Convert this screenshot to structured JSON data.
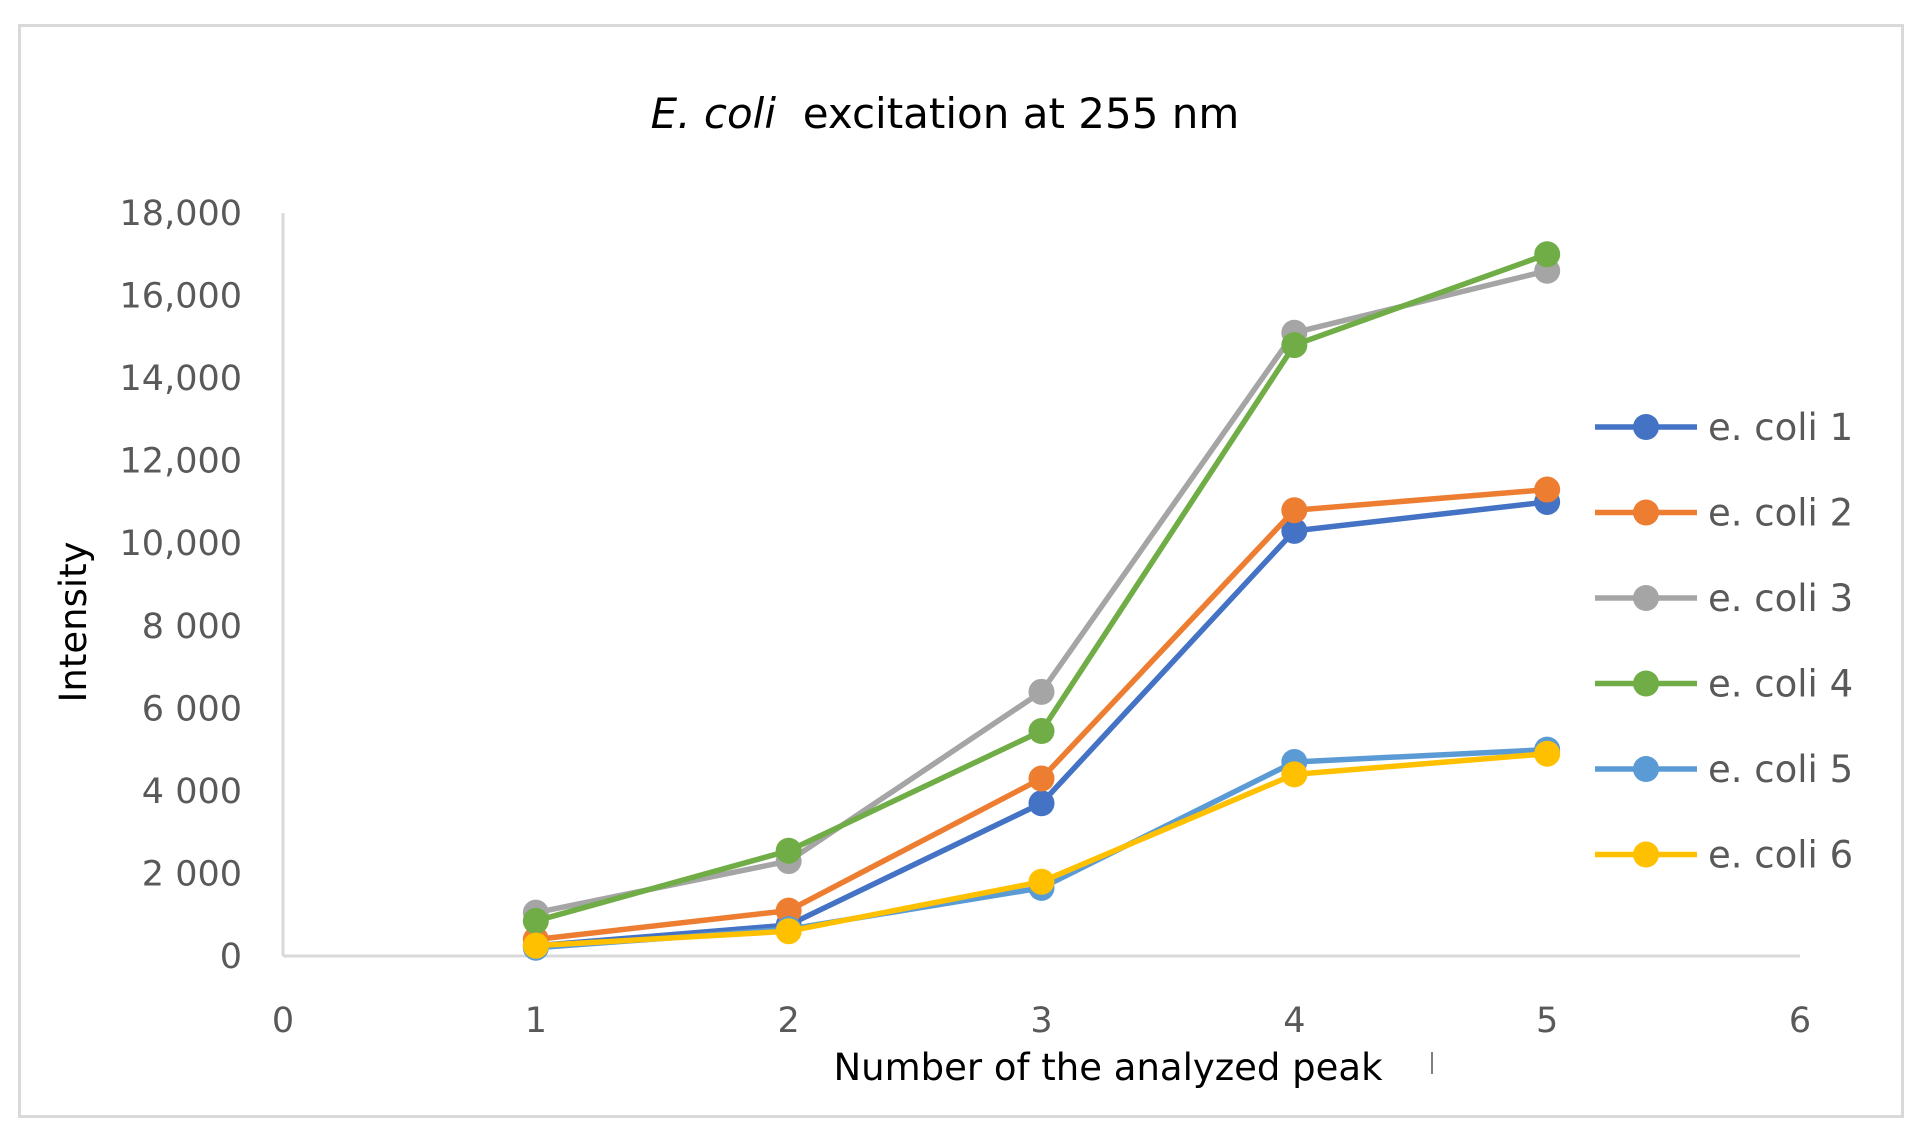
{
  "chart_data": {
    "type": "line",
    "title": {
      "italic": "E. coli",
      "rest": "excitation at 255 nm"
    },
    "xlabel": "Number of the analyzed peak",
    "ylabel": "Intensity",
    "xlim": [
      0,
      6
    ],
    "ylim": [
      0,
      18000
    ],
    "x_ticks": [
      "0",
      "1",
      "2",
      "3",
      "4",
      "5",
      "6"
    ],
    "y_ticks": [
      {
        "value": 0,
        "label": "0"
      },
      {
        "value": 2000,
        "label": "2 000"
      },
      {
        "value": 4000,
        "label": "4 000"
      },
      {
        "value": 6000,
        "label": "6 000"
      },
      {
        "value": 8000,
        "label": "8 000"
      },
      {
        "value": 10000,
        "label": "10,000"
      },
      {
        "value": 12000,
        "label": "12,000"
      },
      {
        "value": 14000,
        "label": "14,000"
      },
      {
        "value": 16000,
        "label": "16,000"
      },
      {
        "value": 18000,
        "label": "18,000"
      }
    ],
    "x": [
      1,
      2,
      3,
      4,
      5
    ],
    "grid": false,
    "legend_position": "right",
    "series": [
      {
        "name": "e. coli 1",
        "color": "#4472c4",
        "values": [
          250,
          750,
          3700,
          10300,
          11000
        ]
      },
      {
        "name": "e. coli 2",
        "color": "#ed7d31",
        "values": [
          400,
          1100,
          4300,
          10800,
          11300
        ]
      },
      {
        "name": "e. coli 3",
        "color": "#a5a5a5",
        "values": [
          1050,
          2300,
          6400,
          15100,
          16600
        ]
      },
      {
        "name": "e. coli 4",
        "color": "#70ad47",
        "values": [
          850,
          2550,
          5450,
          14800,
          17000
        ]
      },
      {
        "name": "e. coli 5",
        "color": "#5b9bd5",
        "values": [
          200,
          650,
          1650,
          4700,
          5000
        ]
      },
      {
        "name": "e. coli 6",
        "color": "#ffc000",
        "values": [
          250,
          600,
          1800,
          4400,
          4900
        ]
      }
    ]
  }
}
